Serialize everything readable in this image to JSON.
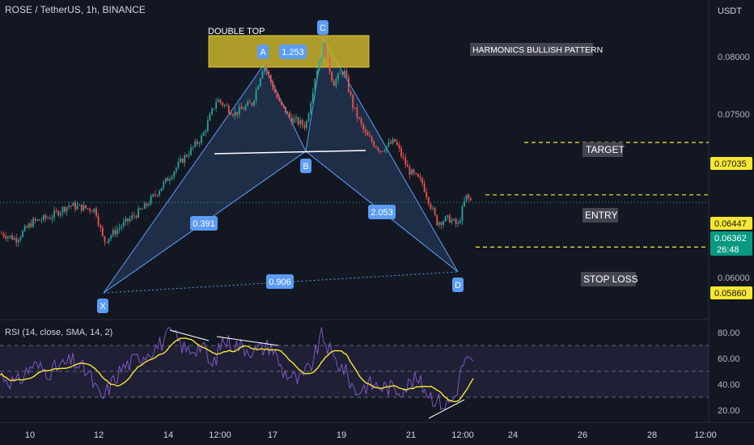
{
  "header": {
    "symbol_title": "ROSE / TetherUS, 1h, BINANCE",
    "currency": "USDT"
  },
  "annotations": {
    "double_top": "DOUBLE TOP",
    "harmonics": "HARMONICS BULLISH PATTERN",
    "target": "TARGET",
    "entry": "ENTRY",
    "stop_loss": "STOP LOSS"
  },
  "colors": {
    "background": "#131722",
    "bull": "#26a69a",
    "bear": "#ef5350",
    "pattern": "#5b9cf6",
    "highlight": "#c9b42a",
    "level_line": "#f7e733",
    "rsi_line": "#7e57c2",
    "rsi_ma": "#f7e733"
  },
  "chart_data": [
    {
      "type": "candlestick",
      "ylim": [
        0.0572,
        0.0843
      ],
      "y_ticks": [
        "0.08000",
        "0.07500",
        "0.06000"
      ],
      "x_ticks": [
        "10",
        "12",
        "14",
        "12:00",
        "17",
        "19",
        "21",
        "12:00",
        "24",
        "26",
        "28",
        "12:00"
      ],
      "pattern_points": [
        {
          "label": "X",
          "price": 0.0592
        },
        {
          "label": "A",
          "price": 0.0792
        },
        {
          "label": "B",
          "price": 0.0716
        },
        {
          "label": "C",
          "price": 0.0812
        },
        {
          "label": "D",
          "price": 0.061
        }
      ],
      "ratios": [
        {
          "label": "0.391"
        },
        {
          "label": "1.253"
        },
        {
          "label": "2.053"
        },
        {
          "label": "0.906"
        }
      ],
      "levels": [
        {
          "name": "target",
          "price": 0.07035,
          "label": "0.07035"
        },
        {
          "name": "entry",
          "price": 0.06447,
          "label": "0.06447"
        },
        {
          "name": "stop_loss",
          "price": 0.0586,
          "label": "0.05860"
        }
      ],
      "current_price": {
        "price": 0.06362,
        "label": "0.06362",
        "countdown": "26:48"
      }
    },
    {
      "type": "line",
      "title": "RSI (14, close, SMA, 14, 2)",
      "ylim": [
        15,
        88
      ],
      "y_ticks": [
        "80.00",
        "60.00",
        "40.00",
        "20.00"
      ],
      "bands": [
        70,
        50,
        30
      ]
    }
  ]
}
